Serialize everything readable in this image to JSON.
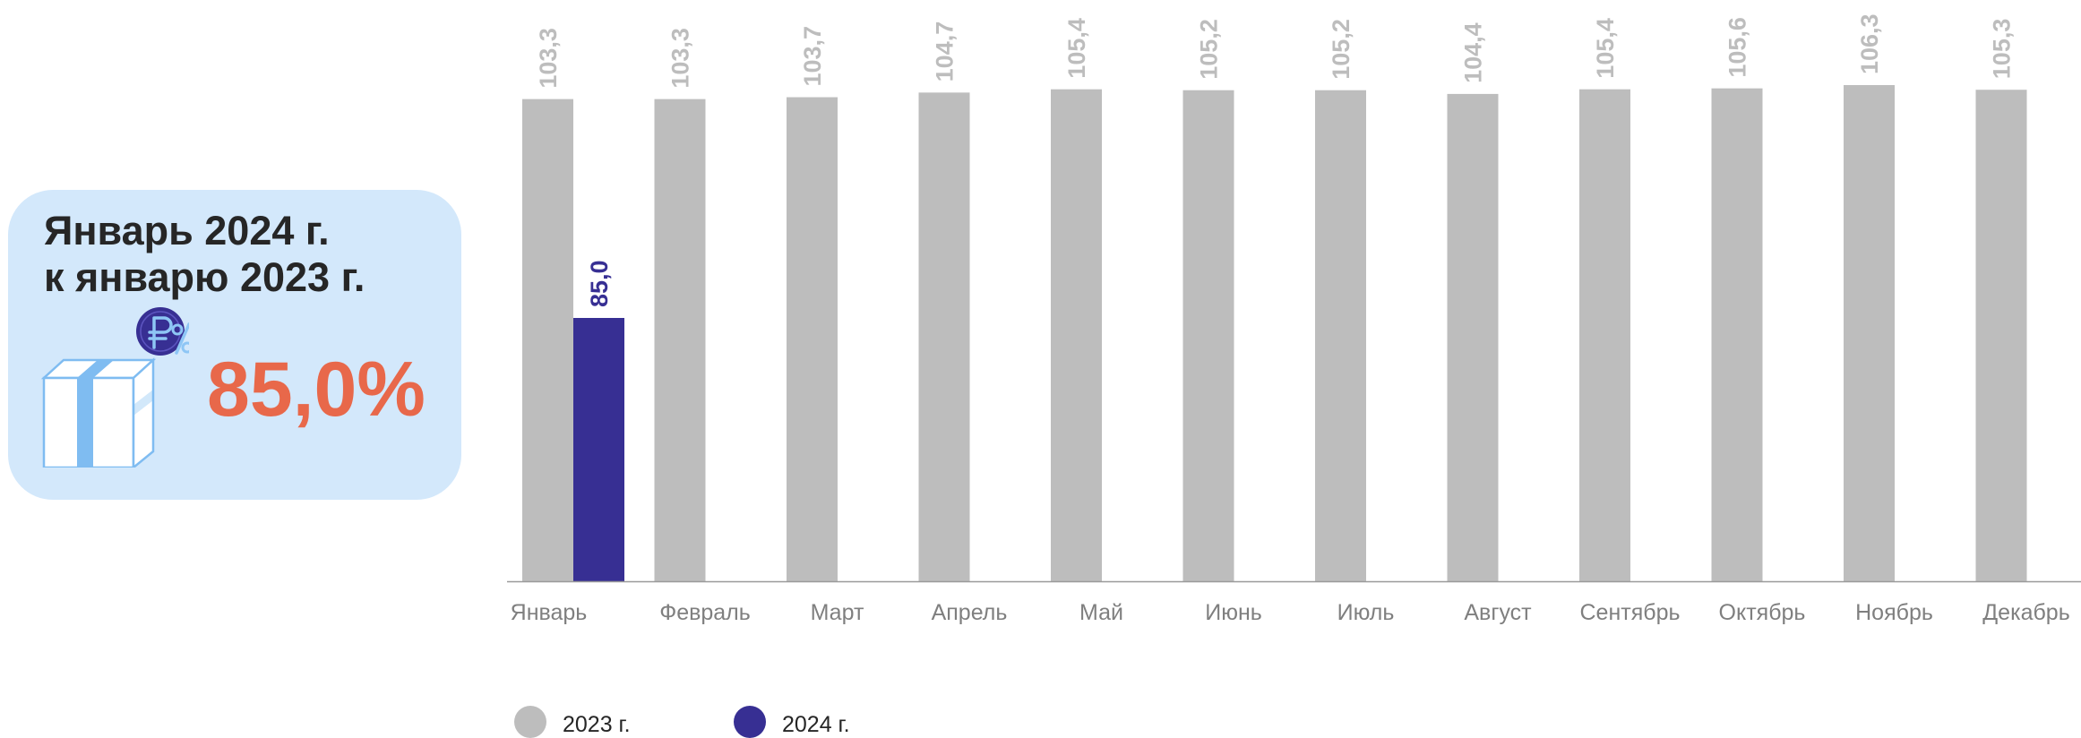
{
  "info_card": {
    "title_line1": "Январь 2024 г.",
    "title_line2": "к январю 2023 г.",
    "value": "85,0%",
    "value_color": "#e8684a",
    "card_color": "#d3e8fb",
    "title_color": "#262626",
    "gift_icon": "gift-box-icon",
    "ruble_coin_icon": "ruble-coin-icon",
    "percent_icon": "percent-icon"
  },
  "chart_data": {
    "type": "bar",
    "categories": [
      "Январь",
      "Февраль",
      "Март",
      "Апрель",
      "Май",
      "Июнь",
      "Июль",
      "Август",
      "Сентябрь",
      "Октябрь",
      "Ноябрь",
      "Декабрь"
    ],
    "series": [
      {
        "name": "2023 г.",
        "color": "#bdbdbd",
        "values": [
          103.3,
          103.3,
          103.7,
          104.7,
          105.4,
          105.2,
          105.2,
          104.4,
          105.4,
          105.6,
          106.3,
          105.3
        ],
        "labels": [
          "103,3",
          "103,3",
          "103,7",
          "104,7",
          "105,4",
          "105,2",
          "105,2",
          "104,4",
          "105,4",
          "105,6",
          "106,3",
          "105,3"
        ]
      },
      {
        "name": "2024 г.",
        "color": "#372f93",
        "values": [
          85.0,
          null,
          null,
          null,
          null,
          null,
          null,
          null,
          null,
          null,
          null,
          null
        ],
        "labels": [
          "85,0",
          "",
          "",
          "",
          "",
          "",
          "",
          "",
          "",
          "",
          "",
          ""
        ]
      }
    ],
    "title": "",
    "xlabel": "",
    "ylabel": "",
    "ylim": [
      0,
      110
    ],
    "grid": false,
    "legend_position": "bottom-left",
    "label_color_2023": "#bdbdbd",
    "label_color_2024": "#372f93",
    "tick_label_color": "#7f7f7f",
    "axis_color": "#9a9a9a"
  },
  "legend": {
    "items": [
      {
        "label": "2023 г.",
        "color": "#bdbdbd"
      },
      {
        "label": "2024 г.",
        "color": "#372f93"
      }
    ]
  }
}
